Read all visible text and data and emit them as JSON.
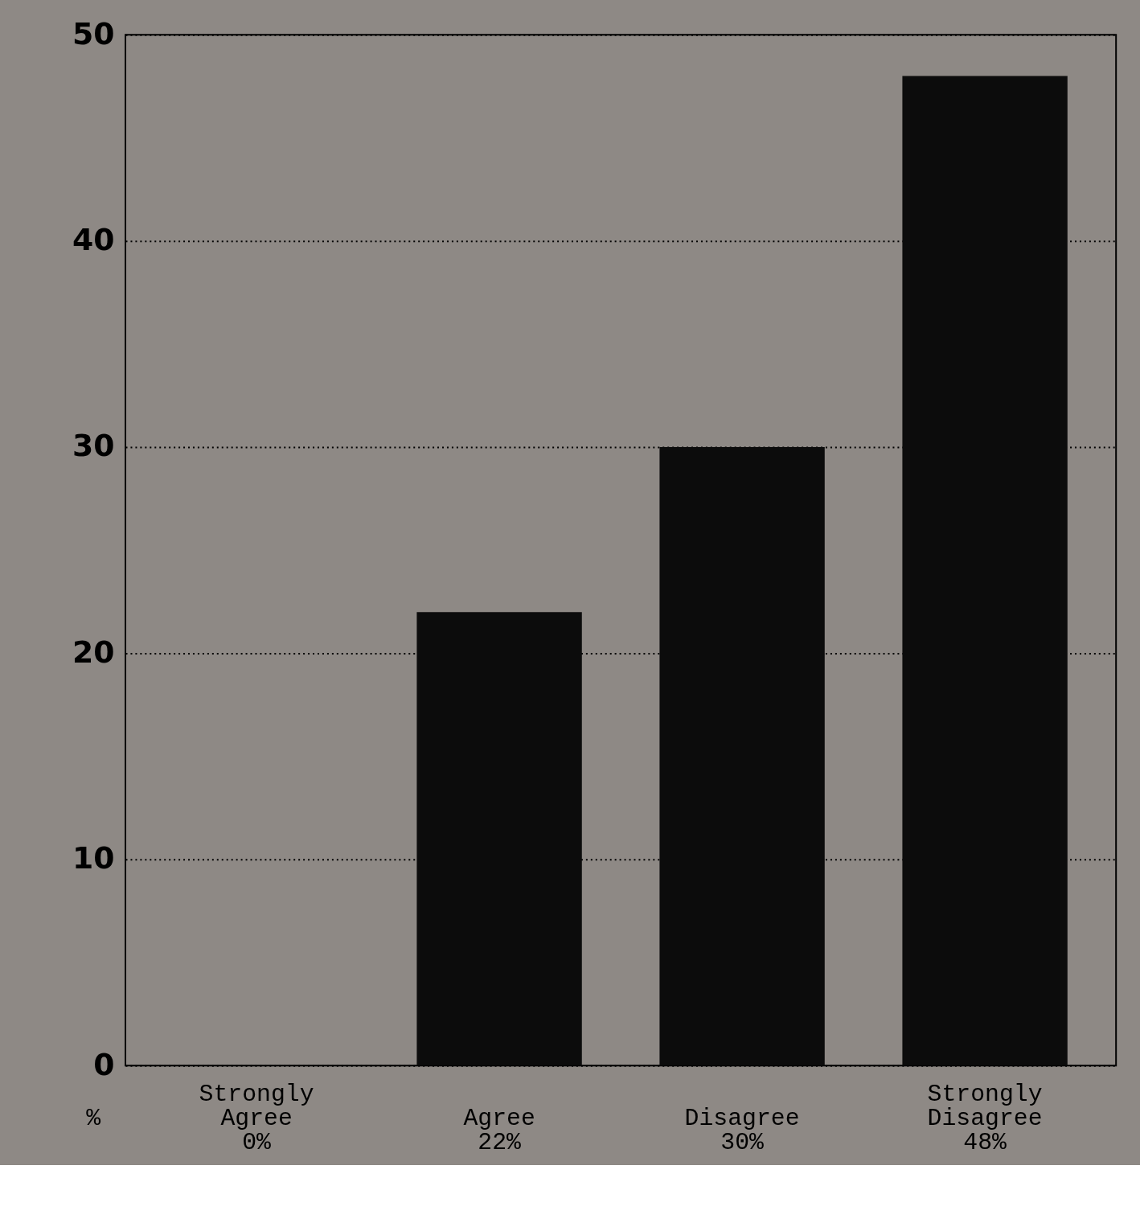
{
  "chart_data": {
    "type": "bar",
    "ylabel": "%",
    "categories": [
      "Strongly Agree",
      "Agree",
      "Disagree",
      "Strongly Disagree"
    ],
    "values": [
      0,
      22,
      30,
      48
    ],
    "value_labels": [
      "0%",
      "22%",
      "30%",
      "48%"
    ],
    "color": "#0c0c0c",
    "ylim": [
      0,
      50
    ],
    "yticks": [
      0,
      10,
      20,
      30,
      40,
      50
    ],
    "grid": "y"
  }
}
